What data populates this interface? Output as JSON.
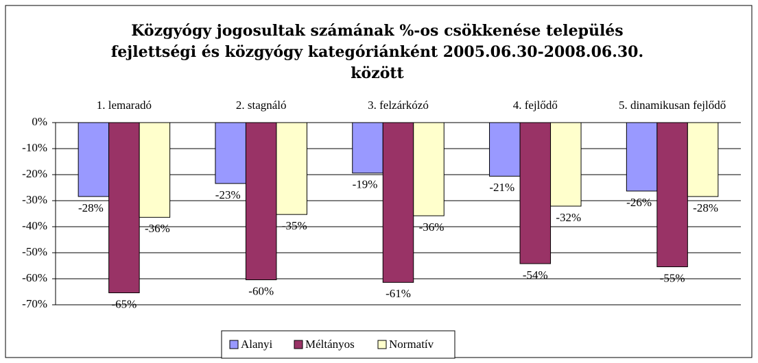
{
  "chart_data": {
    "type": "bar",
    "title": "Közgyógy jogosultak számának %-os csökkenése település fejlettségi és közgyógy kategóriánként 2005.06.30-2008.06.30. között",
    "categories": [
      "1. lemaradó",
      "2. stagnáló",
      "3. felzárkózó",
      "4. fejlődő",
      "5. dinamikusan fejlődő"
    ],
    "series": [
      {
        "name": "Alanyi",
        "color": "#9999ff",
        "values": [
          -28.4,
          -23.4,
          -19.4,
          -20.6,
          -26.3
        ],
        "value_labels": [
          "-28%",
          "-23%",
          "-19%",
          "-21%",
          "-26%"
        ]
      },
      {
        "name": "Méltányos",
        "color": "#993366",
        "values": [
          -65.4,
          -60.4,
          -61.4,
          -54.2,
          -55.4
        ],
        "value_labels": [
          "-65%",
          "-60%",
          "-61%",
          "-54%",
          "-55%"
        ]
      },
      {
        "name": "Normatív",
        "color": "#ffffcc",
        "values": [
          -36.4,
          -35.3,
          -35.8,
          -32.1,
          -28.4
        ],
        "value_labels": [
          "-36%",
          "-35%",
          "-36%",
          "-32%",
          "-28%"
        ]
      }
    ],
    "ylim": [
      -70,
      0
    ],
    "yticks": [
      {
        "value": 0,
        "label": "0%"
      },
      {
        "value": -10,
        "label": "-10%"
      },
      {
        "value": -20,
        "label": "-20%"
      },
      {
        "value": -30,
        "label": "-30%"
      },
      {
        "value": -40,
        "label": "-40%"
      },
      {
        "value": -50,
        "label": "-50%"
      },
      {
        "value": -60,
        "label": "-60%"
      },
      {
        "value": -70,
        "label": "-70%"
      }
    ],
    "grid": true,
    "legend": "bottom"
  }
}
